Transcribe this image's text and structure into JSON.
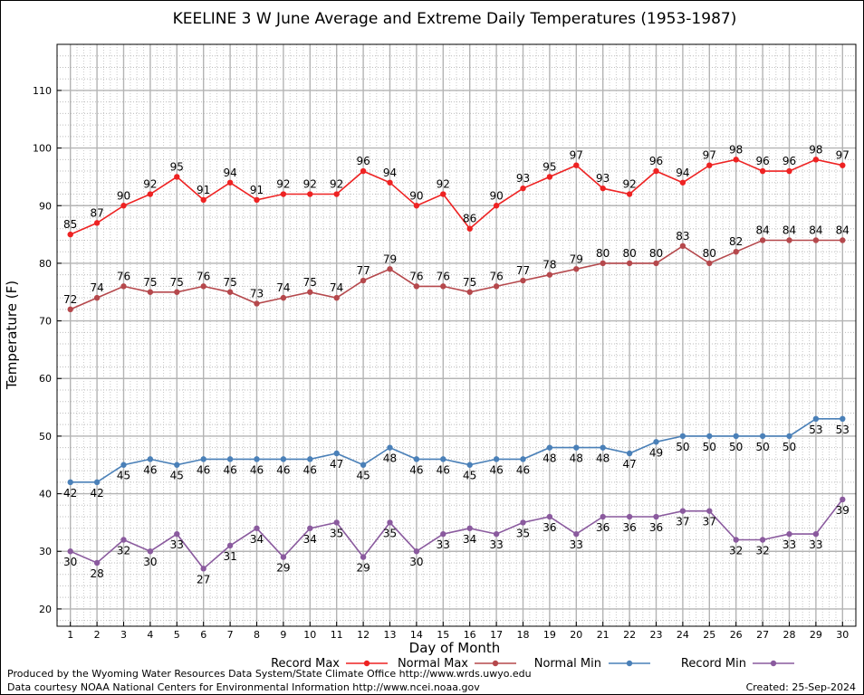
{
  "chart_data": {
    "type": "line",
    "title": "KEELINE 3 W June Average and Extreme Daily Temperatures (1953-1987)",
    "xlabel": "Day of Month",
    "ylabel": "Temperature (F)",
    "x": [
      1,
      2,
      3,
      4,
      5,
      6,
      7,
      8,
      9,
      10,
      11,
      12,
      13,
      14,
      15,
      16,
      17,
      18,
      19,
      20,
      21,
      22,
      23,
      24,
      25,
      26,
      27,
      28,
      29,
      30
    ],
    "xlim": [
      0.5,
      30.5
    ],
    "ylim": [
      17,
      118
    ],
    "yticks": [
      20,
      30,
      40,
      50,
      60,
      70,
      80,
      90,
      100,
      110
    ],
    "grid": true,
    "legend_position": "bottom",
    "series": [
      {
        "name": "Record Max",
        "color": "#ee2222",
        "label_side": "above",
        "values": [
          85,
          87,
          90,
          92,
          95,
          91,
          94,
          91,
          92,
          92,
          92,
          96,
          94,
          90,
          92,
          86,
          90,
          93,
          95,
          97,
          93,
          92,
          96,
          94,
          97,
          98,
          96,
          96,
          98,
          97
        ]
      },
      {
        "name": "Normal Max",
        "color": "#b5484c",
        "label_side": "above",
        "values": [
          72,
          74,
          76,
          75,
          75,
          76,
          75,
          73,
          74,
          75,
          74,
          77,
          79,
          76,
          76,
          75,
          76,
          77,
          78,
          79,
          80,
          80,
          80,
          83,
          80,
          82,
          84,
          84,
          84,
          84
        ]
      },
      {
        "name": "Normal Min",
        "color": "#4a80b8",
        "label_side": "below",
        "values": [
          42,
          42,
          45,
          46,
          45,
          46,
          46,
          46,
          46,
          46,
          47,
          45,
          48,
          46,
          46,
          45,
          46,
          46,
          48,
          48,
          48,
          47,
          49,
          50,
          50,
          50,
          50,
          50,
          53,
          53
        ]
      },
      {
        "name": "Record Min",
        "color": "#8a5a9e",
        "label_side": "below",
        "values": [
          30,
          28,
          32,
          30,
          33,
          27,
          31,
          34,
          29,
          34,
          35,
          29,
          35,
          30,
          33,
          34,
          33,
          35,
          36,
          33,
          36,
          36,
          36,
          37,
          37,
          32,
          32,
          33,
          33,
          39
        ]
      }
    ]
  },
  "footer": {
    "produced_by": "Produced by the Wyoming Water Resources Data System/State Climate Office http://www.wrds.uwyo.edu",
    "courtesy": "Data courtesy NOAA National Centers for Environmental Information http://www.ncei.noaa.gov",
    "created": "Created:  25-Sep-2024"
  }
}
